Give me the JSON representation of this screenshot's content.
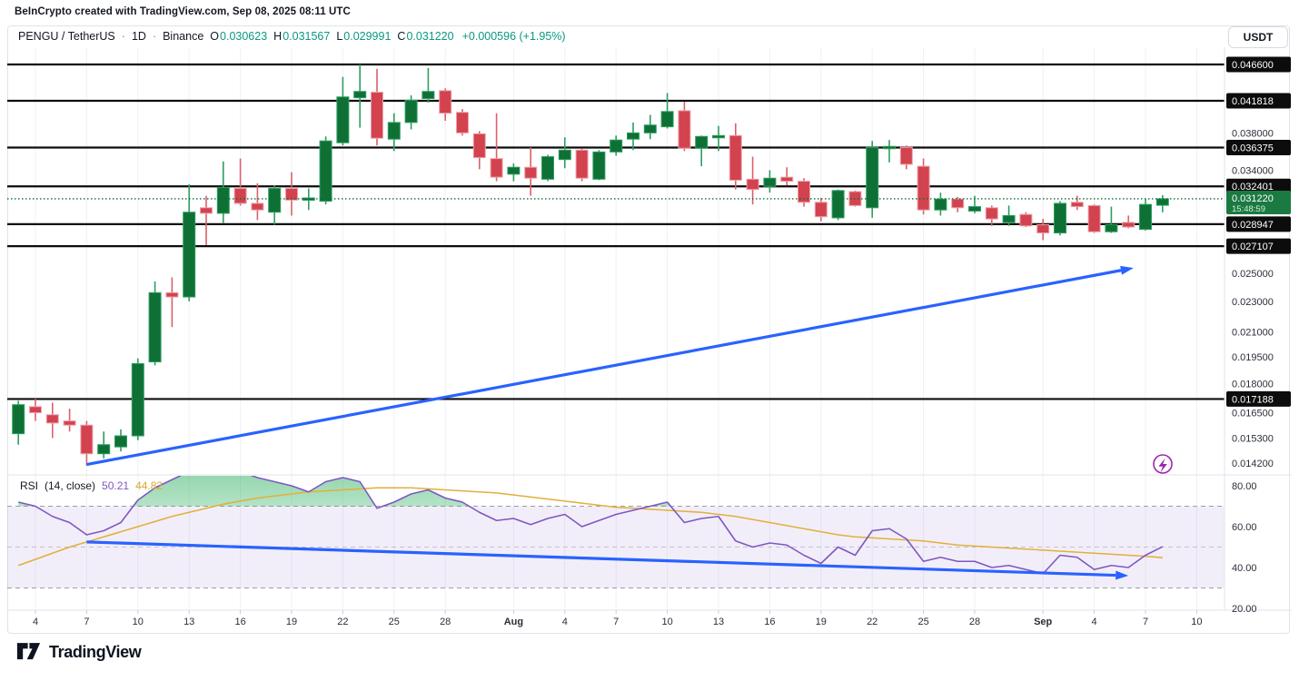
{
  "header": {
    "attribution": "BeInCrypto created with TradingView.com, Sep 08, 2025 08:11 UTC"
  },
  "toolbar": {
    "symbol": "PENGU / TetherUS",
    "sep1": "·",
    "interval": "1D",
    "sep2": "·",
    "exchange": "Binance",
    "ohlc": {
      "o_label": "O",
      "o_value": "0.030623",
      "h_label": "H",
      "h_value": "0.031567",
      "l_label": "L",
      "l_value": "0.029991",
      "c_label": "C",
      "c_value": "0.031220",
      "change": "+0.000596 (+1.95%)"
    },
    "currency_button": "USDT"
  },
  "rsi_legend": {
    "title": "RSI",
    "params": "(14, close)",
    "value": "50.21",
    "ma_value": "44.82"
  },
  "footer": {
    "brand": "TradingView"
  },
  "colors": {
    "up": "#0f7036",
    "up_border": "#2d9e60",
    "up_wick": "#2d9e60",
    "down": "#d2434f",
    "down_border": "#eda1a8",
    "down_wick": "#dd5f6a",
    "level": "#0c0c0c",
    "badge_bg": "#0c0c0c",
    "badge_text": "#ffffff",
    "current_badge_bg": "#1a7a41",
    "countdown_text": "#d7ecd9",
    "accent_blue": "#2962ff",
    "teal": "#089981",
    "rsi_line": "#7e57c2",
    "rsi_ma": "#e3af3d",
    "rsi_band": "rgba(126,87,194,0.10)",
    "rsi_dash": "#8c8f99",
    "rsi_fill": "#22ab56",
    "axis_text": "#2a2e39",
    "grid": "#eef1f7",
    "border": "#e0e3eb",
    "purple_icon": "#9c27b0",
    "dotted_price": "#0e6b35"
  },
  "price_axis": {
    "plain_labels": [
      {
        "text": "0.038000",
        "price": 0.038
      },
      {
        "text": "0.034000",
        "price": 0.034
      },
      {
        "text": "0.025000",
        "price": 0.025
      },
      {
        "text": "0.023000",
        "price": 0.023
      },
      {
        "text": "0.021000",
        "price": 0.021
      },
      {
        "text": "0.019500",
        "price": 0.0195
      },
      {
        "text": "0.018000",
        "price": 0.018
      },
      {
        "text": "0.016500",
        "price": 0.0165
      },
      {
        "text": "0.015300",
        "price": 0.0153
      },
      {
        "text": "0.014200",
        "price": 0.0142
      }
    ],
    "level_labels": [
      {
        "text": "0.046600",
        "price": 0.0466
      },
      {
        "text": "0.041818",
        "price": 0.041818
      },
      {
        "text": "0.036375",
        "price": 0.036375
      },
      {
        "text": "0.032401",
        "price": 0.032401
      },
      {
        "text": "0.028947",
        "price": 0.028947
      },
      {
        "text": "0.027107",
        "price": 0.027107
      },
      {
        "text": "0.017188",
        "price": 0.017188
      }
    ],
    "current": {
      "text": "0.031220",
      "countdown": "15:48:59",
      "price": 0.03122
    }
  },
  "rsi_axis": {
    "labels": [
      {
        "text": "80.00",
        "value": 80
      },
      {
        "text": "60.00",
        "value": 60
      },
      {
        "text": "40.00",
        "value": 40
      },
      {
        "text": "20.00",
        "value": 20
      }
    ]
  },
  "time_axis": {
    "labels": [
      {
        "text": "4",
        "i": 1,
        "bold": false
      },
      {
        "text": "7",
        "i": 4,
        "bold": false
      },
      {
        "text": "10",
        "i": 7,
        "bold": false
      },
      {
        "text": "13",
        "i": 10,
        "bold": false
      },
      {
        "text": "16",
        "i": 13,
        "bold": false
      },
      {
        "text": "19",
        "i": 16,
        "bold": false
      },
      {
        "text": "22",
        "i": 19,
        "bold": false
      },
      {
        "text": "25",
        "i": 22,
        "bold": false
      },
      {
        "text": "28",
        "i": 25,
        "bold": false
      },
      {
        "text": "Aug",
        "i": 29,
        "bold": true
      },
      {
        "text": "4",
        "i": 32,
        "bold": false
      },
      {
        "text": "7",
        "i": 35,
        "bold": false
      },
      {
        "text": "10",
        "i": 38,
        "bold": false
      },
      {
        "text": "13",
        "i": 41,
        "bold": false
      },
      {
        "text": "16",
        "i": 44,
        "bold": false
      },
      {
        "text": "19",
        "i": 47,
        "bold": false
      },
      {
        "text": "22",
        "i": 50,
        "bold": false
      },
      {
        "text": "25",
        "i": 53,
        "bold": false
      },
      {
        "text": "28",
        "i": 56,
        "bold": false
      },
      {
        "text": "Sep",
        "i": 60,
        "bold": true
      },
      {
        "text": "4",
        "i": 63,
        "bold": false
      },
      {
        "text": "7",
        "i": 66,
        "bold": false
      },
      {
        "text": "10",
        "i": 69,
        "bold": false
      }
    ]
  },
  "chart_data": {
    "type": "candlestick",
    "symbol": "PENGU/TetherUS",
    "exchange": "Binance",
    "interval": "1D",
    "scale": "log",
    "visible_price_range": [
      0.0137,
      0.0486
    ],
    "visible_time_range": [
      "Jul 3",
      "Sep 10"
    ],
    "current_price": 0.03122,
    "horizontal_levels": [
      0.0466,
      0.041818,
      0.036375,
      0.032401,
      0.028947,
      0.027107,
      0.017188
    ],
    "candles": [
      [
        "Jul 3",
        0.0155,
        0.0171,
        0.015,
        0.0169
      ],
      [
        "Jul 4",
        0.0168,
        0.0172,
        0.0161,
        0.0165
      ],
      [
        "Jul 5",
        0.0164,
        0.017,
        0.0153,
        0.016
      ],
      [
        "Jul 6",
        0.0161,
        0.0167,
        0.0156,
        0.0159
      ],
      [
        "Jul 7",
        0.0159,
        0.0161,
        0.0141,
        0.0146
      ],
      [
        "Jul 8",
        0.0146,
        0.0156,
        0.0144,
        0.015
      ],
      [
        "Jul 9",
        0.0149,
        0.0157,
        0.0147,
        0.0154
      ],
      [
        "Jul 10",
        0.0154,
        0.0194,
        0.0152,
        0.0191
      ],
      [
        "Jul 11",
        0.0192,
        0.0244,
        0.019,
        0.0236
      ],
      [
        "Jul 12",
        0.0236,
        0.0247,
        0.0213,
        0.0233
      ],
      [
        "Jul 13",
        0.0233,
        0.0326,
        0.023,
        0.03
      ],
      [
        "Jul 14",
        0.0304,
        0.0315,
        0.0272,
        0.0299
      ],
      [
        "Jul 15",
        0.0299,
        0.0349,
        0.029,
        0.0323
      ],
      [
        "Jul 16",
        0.0322,
        0.0352,
        0.0306,
        0.0308
      ],
      [
        "Jul 17",
        0.0308,
        0.0327,
        0.0293,
        0.0302
      ],
      [
        "Jul 18",
        0.03,
        0.0325,
        0.0289,
        0.0322
      ],
      [
        "Jul 19",
        0.0322,
        0.0338,
        0.0297,
        0.0311
      ],
      [
        "Jul 20",
        0.0311,
        0.0322,
        0.0302,
        0.0313
      ],
      [
        "Jul 21",
        0.031,
        0.0376,
        0.0307,
        0.0371
      ],
      [
        "Jul 22",
        0.0369,
        0.0449,
        0.0366,
        0.0423
      ],
      [
        "Jul 23",
        0.0422,
        0.0466,
        0.0386,
        0.043
      ],
      [
        "Jul 24",
        0.0429,
        0.046,
        0.0366,
        0.0374
      ],
      [
        "Jul 25",
        0.0373,
        0.0403,
        0.036,
        0.0392
      ],
      [
        "Jul 26",
        0.0392,
        0.0425,
        0.0384,
        0.0419
      ],
      [
        "Jul 27",
        0.0421,
        0.0461,
        0.0416,
        0.043
      ],
      [
        "Jul 28",
        0.0431,
        0.0434,
        0.0394,
        0.0403
      ],
      [
        "Jul 29",
        0.0404,
        0.0408,
        0.0377,
        0.038
      ],
      [
        "Jul 30",
        0.0379,
        0.0382,
        0.0341,
        0.0353
      ],
      [
        "Jul 31",
        0.0352,
        0.0403,
        0.0329,
        0.0333
      ],
      [
        "Aug 1",
        0.0336,
        0.0347,
        0.0329,
        0.0343
      ],
      [
        "Aug 2",
        0.0343,
        0.0364,
        0.0315,
        0.0332
      ],
      [
        "Aug 3",
        0.0331,
        0.0356,
        0.0329,
        0.0354
      ],
      [
        "Aug 4",
        0.0351,
        0.0375,
        0.0342,
        0.0361
      ],
      [
        "Aug 5",
        0.0361,
        0.0363,
        0.0329,
        0.0332
      ],
      [
        "Aug 6",
        0.0331,
        0.0361,
        0.033,
        0.0359
      ],
      [
        "Aug 7",
        0.0359,
        0.0377,
        0.0355,
        0.0372
      ],
      [
        "Aug 8",
        0.0373,
        0.0392,
        0.0361,
        0.038
      ],
      [
        "Aug 9",
        0.038,
        0.0401,
        0.0373,
        0.0389
      ],
      [
        "Aug 10",
        0.0387,
        0.0428,
        0.0385,
        0.0405
      ],
      [
        "Aug 11",
        0.0406,
        0.0417,
        0.036,
        0.0363
      ],
      [
        "Aug 12",
        0.0363,
        0.0377,
        0.0344,
        0.0376
      ],
      [
        "Aug 13",
        0.0376,
        0.0388,
        0.036,
        0.0377
      ],
      [
        "Aug 14",
        0.0377,
        0.0391,
        0.0321,
        0.033
      ],
      [
        "Aug 15",
        0.0331,
        0.0354,
        0.0307,
        0.0321
      ],
      [
        "Aug 16",
        0.0324,
        0.034,
        0.0318,
        0.0332
      ],
      [
        "Aug 17",
        0.0333,
        0.0343,
        0.0325,
        0.0329
      ],
      [
        "Aug 18",
        0.0329,
        0.0332,
        0.0305,
        0.0309
      ],
      [
        "Aug 19",
        0.0309,
        0.0313,
        0.0292,
        0.0296
      ],
      [
        "Aug 20",
        0.0295,
        0.0321,
        0.0293,
        0.032
      ],
      [
        "Aug 21",
        0.0319,
        0.032,
        0.0305,
        0.0306
      ],
      [
        "Aug 22",
        0.0304,
        0.0371,
        0.0295,
        0.0364
      ],
      [
        "Aug 23",
        0.0364,
        0.0372,
        0.0348,
        0.0365
      ],
      [
        "Aug 24",
        0.0364,
        0.0366,
        0.0341,
        0.0346
      ],
      [
        "Aug 25",
        0.0344,
        0.0352,
        0.0298,
        0.0302
      ],
      [
        "Aug 26",
        0.0302,
        0.0318,
        0.0297,
        0.0312
      ],
      [
        "Aug 27",
        0.0312,
        0.0314,
        0.03,
        0.0304
      ],
      [
        "Aug 28",
        0.0301,
        0.0315,
        0.0299,
        0.0305
      ],
      [
        "Aug 29",
        0.0304,
        0.0306,
        0.0288,
        0.0294
      ],
      [
        "Aug 30",
        0.0291,
        0.0306,
        0.0288,
        0.0297
      ],
      [
        "Aug 31",
        0.0298,
        0.03,
        0.0287,
        0.0288
      ],
      [
        "Sep 1",
        0.0289,
        0.0294,
        0.0276,
        0.0282
      ],
      [
        "Sep 2",
        0.0282,
        0.031,
        0.028,
        0.0308
      ],
      [
        "Sep 3",
        0.0309,
        0.0315,
        0.0302,
        0.0305
      ],
      [
        "Sep 4",
        0.0306,
        0.0307,
        0.0282,
        0.0283
      ],
      [
        "Sep 5",
        0.0283,
        0.0305,
        0.0282,
        0.0289
      ],
      [
        "Sep 6",
        0.0291,
        0.0297,
        0.0286,
        0.0287
      ],
      [
        "Sep 7",
        0.0285,
        0.0312,
        0.0284,
        0.0307
      ],
      [
        "Sep 8",
        0.030623,
        0.031567,
        0.029991,
        0.03122
      ]
    ],
    "rsi": {
      "period": 14,
      "source": "close",
      "overbought": 70,
      "middle": 50,
      "oversold": 30,
      "last_value": 50.21,
      "last_ma": 44.82,
      "series": [
        72,
        70,
        65,
        62,
        56,
        58,
        62,
        73,
        79,
        83,
        87,
        86,
        88,
        87,
        84,
        82,
        80,
        77,
        82,
        84,
        82,
        69,
        72,
        76,
        78,
        74,
        72,
        67,
        63,
        64,
        61,
        64,
        66,
        60,
        63,
        66,
        68,
        70,
        72,
        62,
        64,
        65,
        53,
        50,
        52,
        51,
        46,
        42,
        50,
        46,
        58,
        59,
        54,
        43,
        45,
        43,
        43,
        40,
        41,
        39,
        37,
        46,
        45,
        39,
        41,
        40,
        46,
        50.21
      ],
      "ma_series": [
        41,
        44,
        47,
        50,
        52.5,
        55,
        57.5,
        60,
        62.5,
        65,
        67,
        69,
        71,
        72.5,
        74,
        75,
        76,
        77,
        77.5,
        78,
        78.5,
        79,
        79,
        79,
        78.5,
        78,
        77.5,
        77,
        76.5,
        75.5,
        74.5,
        73.5,
        72.5,
        71.5,
        70.5,
        69.5,
        69,
        68.5,
        68,
        67.5,
        67,
        66,
        65,
        63.5,
        62,
        60.5,
        59,
        57.5,
        56,
        55,
        54.5,
        54,
        53.5,
        53,
        52,
        51,
        50.5,
        50,
        49.5,
        49,
        48.5,
        48,
        47.5,
        47,
        46.5,
        46,
        45.5,
        44.82
      ]
    },
    "trendlines": [
      {
        "pane": "price",
        "from_index": 4,
        "from_price": 0.01414,
        "to_index": 65.3,
        "to_price": 0.0254
      },
      {
        "pane": "rsi",
        "from_index": 4,
        "from_value": 52.5,
        "to_index": 65,
        "to_value": 36
      }
    ]
  }
}
